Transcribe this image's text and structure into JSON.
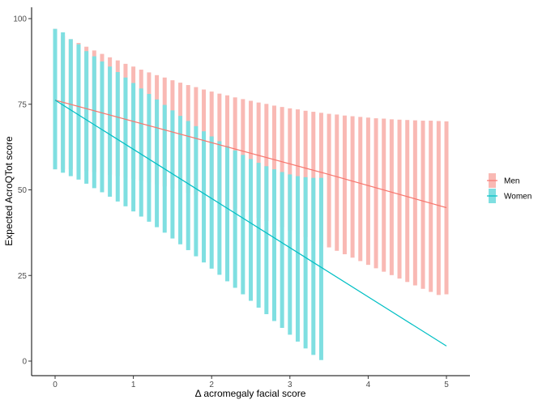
{
  "chart_data": {
    "type": "line",
    "title": "",
    "xlabel": "Δ acromegaly facial score",
    "ylabel": "Expected AcroQTot score",
    "xlim": [
      -0.2,
      5.2
    ],
    "ylim": [
      -5,
      101
    ],
    "x_ticks": [
      0,
      1,
      2,
      3,
      4,
      5
    ],
    "x_tick_labels": [
      "0",
      "1",
      "2",
      "3",
      "4",
      "5"
    ],
    "y_ticks": [
      0,
      25,
      50,
      75,
      100
    ],
    "y_tick_labels": [
      "0",
      "25",
      "50",
      "75",
      "100"
    ],
    "grid": false,
    "legend_position": "right",
    "series": [
      {
        "name": "Men",
        "color": "#F8766D",
        "band_color": "#F9B9B4",
        "line": [
          [
            0,
            76.2
          ],
          [
            3.45,
            54.8
          ],
          [
            5,
            44.8
          ]
        ],
        "ci": [
          [
            0.0,
            56,
            97
          ],
          [
            0.1,
            56,
            95
          ],
          [
            0.2,
            56,
            94
          ],
          [
            0.3,
            55.8,
            92.9
          ],
          [
            0.4,
            55.5,
            91.8
          ],
          [
            0.5,
            55.2,
            90.7
          ],
          [
            0.6,
            54.8,
            89.7
          ],
          [
            0.7,
            54.4,
            88.7
          ],
          [
            0.8,
            54,
            87.8
          ],
          [
            0.9,
            53.6,
            86.8
          ],
          [
            1.0,
            53.2,
            86
          ],
          [
            1.1,
            52.7,
            85.1
          ],
          [
            1.2,
            52.2,
            84.3
          ],
          [
            1.3,
            51.6,
            83.5
          ],
          [
            1.4,
            51,
            82.8
          ],
          [
            1.5,
            50.4,
            82
          ],
          [
            1.6,
            49.8,
            81.3
          ],
          [
            1.7,
            49.1,
            80.6
          ],
          [
            1.8,
            48.4,
            80
          ],
          [
            1.9,
            47.7,
            79.3
          ],
          [
            2.0,
            46.9,
            78.7
          ],
          [
            2.1,
            46.1,
            78.1
          ],
          [
            2.2,
            45.3,
            77.6
          ],
          [
            2.3,
            44.5,
            77
          ],
          [
            2.4,
            43.6,
            76.5
          ],
          [
            2.5,
            42.7,
            76
          ],
          [
            2.6,
            41.8,
            75.5
          ],
          [
            2.7,
            40.9,
            75.1
          ],
          [
            2.8,
            40,
            74.6
          ],
          [
            2.9,
            39.1,
            74.2
          ],
          [
            3.0,
            38.1,
            73.8
          ],
          [
            3.1,
            37.2,
            73.5
          ],
          [
            3.2,
            36.2,
            73.1
          ],
          [
            3.3,
            35.2,
            72.8
          ],
          [
            3.4,
            34.2,
            72.5
          ],
          [
            3.5,
            33.2,
            72.2
          ],
          [
            3.6,
            32.2,
            72
          ],
          [
            3.7,
            31.2,
            71.7
          ],
          [
            3.8,
            30.2,
            71.5
          ],
          [
            3.9,
            29.2,
            71.3
          ],
          [
            4.0,
            28.1,
            71.1
          ],
          [
            4.1,
            27.1,
            70.9
          ],
          [
            4.2,
            26.1,
            70.8
          ],
          [
            4.3,
            25.1,
            70.6
          ],
          [
            4.4,
            24.1,
            70.5
          ],
          [
            4.5,
            23.1,
            70.4
          ],
          [
            4.6,
            22.1,
            70.3
          ],
          [
            4.7,
            21.1,
            70.2
          ],
          [
            4.8,
            20.2,
            70.2
          ],
          [
            4.9,
            19.3,
            70.1
          ],
          [
            5.0,
            19.5,
            70
          ]
        ]
      },
      {
        "name": "Women",
        "color": "#00BFC4",
        "band_color": "#7FDFE1",
        "line": [
          [
            0,
            76.2
          ],
          [
            5,
            4.4
          ]
        ],
        "ci": [
          [
            0.0,
            56,
            97
          ],
          [
            0.1,
            55,
            96
          ],
          [
            0.2,
            54,
            94
          ],
          [
            0.3,
            53,
            92.5
          ],
          [
            0.4,
            51.8,
            90.5
          ],
          [
            0.5,
            50.5,
            89
          ],
          [
            0.6,
            49.3,
            87.5
          ],
          [
            0.7,
            48,
            86
          ],
          [
            0.8,
            46.6,
            84.4
          ],
          [
            0.9,
            45.2,
            82.8
          ],
          [
            1.0,
            43.7,
            81.2
          ],
          [
            1.1,
            42.2,
            79.6
          ],
          [
            1.2,
            40.7,
            78
          ],
          [
            1.3,
            39.1,
            76.4
          ],
          [
            1.4,
            37.5,
            74.8
          ],
          [
            1.5,
            35.8,
            73.2
          ],
          [
            1.6,
            34.1,
            71.6
          ],
          [
            1.7,
            32.4,
            70.1
          ],
          [
            1.8,
            30.6,
            68.6
          ],
          [
            1.9,
            28.8,
            67.1
          ],
          [
            2.0,
            27,
            65.6
          ],
          [
            2.1,
            25.2,
            64.2
          ],
          [
            2.2,
            23.3,
            62.8
          ],
          [
            2.3,
            21.4,
            61.5
          ],
          [
            2.4,
            19.5,
            60.2
          ],
          [
            2.5,
            17.6,
            59
          ],
          [
            2.6,
            15.6,
            57.9
          ],
          [
            2.7,
            13.7,
            56.9
          ],
          [
            2.8,
            11.7,
            56
          ],
          [
            2.9,
            9.7,
            55.2
          ],
          [
            3.0,
            7.7,
            54.5
          ],
          [
            3.1,
            5.7,
            54
          ],
          [
            3.2,
            3.7,
            53.7
          ],
          [
            3.3,
            1.8,
            53.5
          ],
          [
            3.4,
            0.3,
            53.5
          ]
        ]
      }
    ]
  }
}
